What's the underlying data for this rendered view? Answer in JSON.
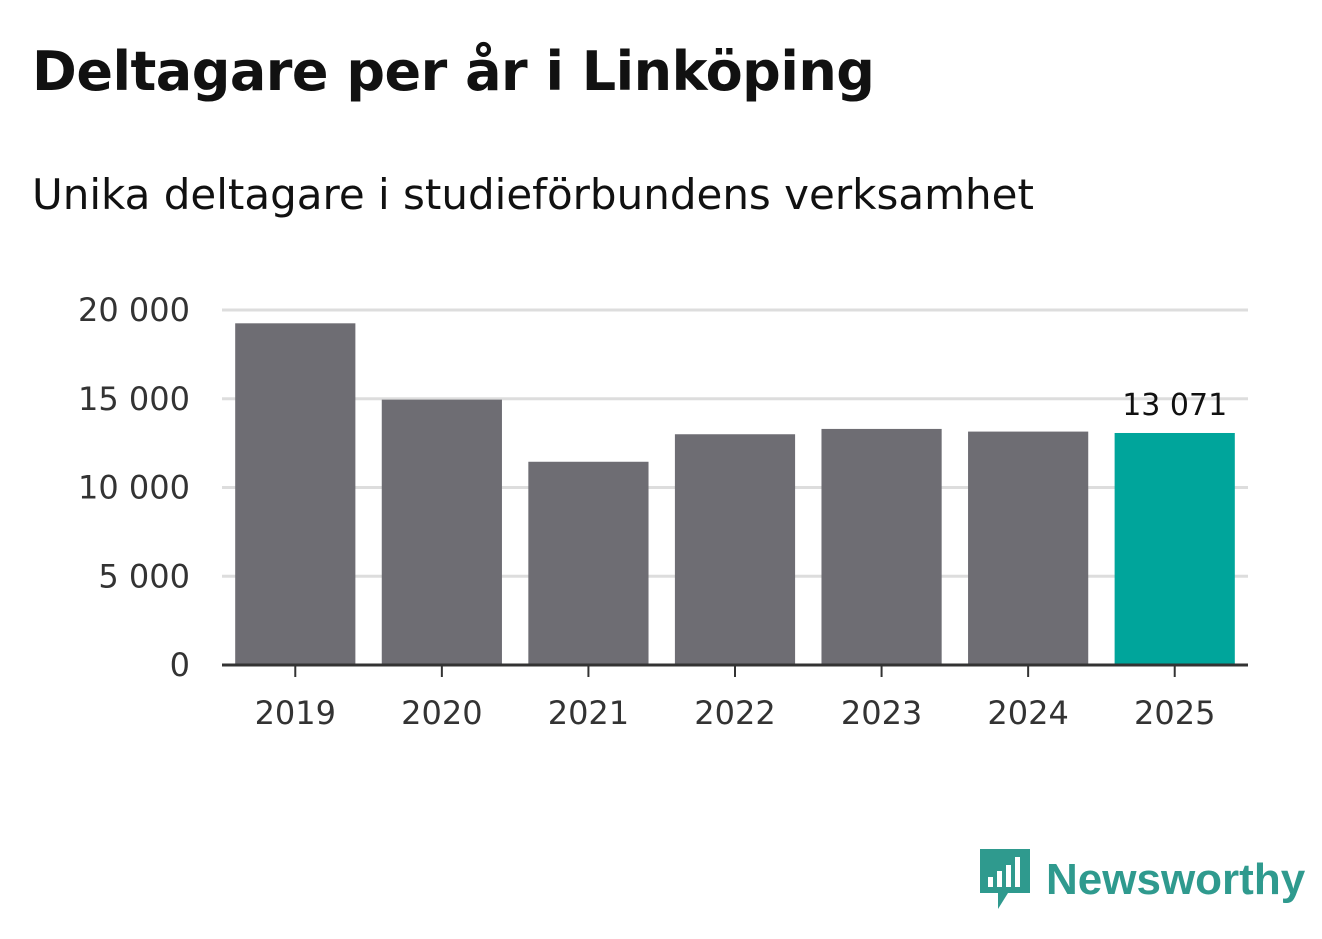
{
  "colors": {
    "bar": "#6e6d73",
    "highlight": "#00a59b",
    "grid": "#dddddd",
    "axis": "#333333",
    "brand": "#2f9a8e"
  },
  "brand": {
    "name": "Newsworthy",
    "icon": "chart-bubble-icon"
  },
  "chart_data": {
    "type": "bar",
    "title": "Deltagare per år i Linköping",
    "subtitle": "Unika deltagare i studieförbundens verksamhet",
    "categories": [
      "2019",
      "2020",
      "2021",
      "2022",
      "2023",
      "2024",
      "2025"
    ],
    "values": [
      19250,
      14950,
      11450,
      13000,
      13300,
      13150,
      13071
    ],
    "highlight_index": 6,
    "data_labels": [
      {
        "index": 6,
        "text": "13 071"
      }
    ],
    "ylim": [
      0,
      20000
    ],
    "yticks": [
      0,
      5000,
      10000,
      15000,
      20000
    ],
    "ytick_labels": [
      "0",
      "5 000",
      "10 000",
      "15 000",
      "20 000"
    ],
    "xlabel": "",
    "ylabel": "",
    "grid": true,
    "legend": "none"
  }
}
